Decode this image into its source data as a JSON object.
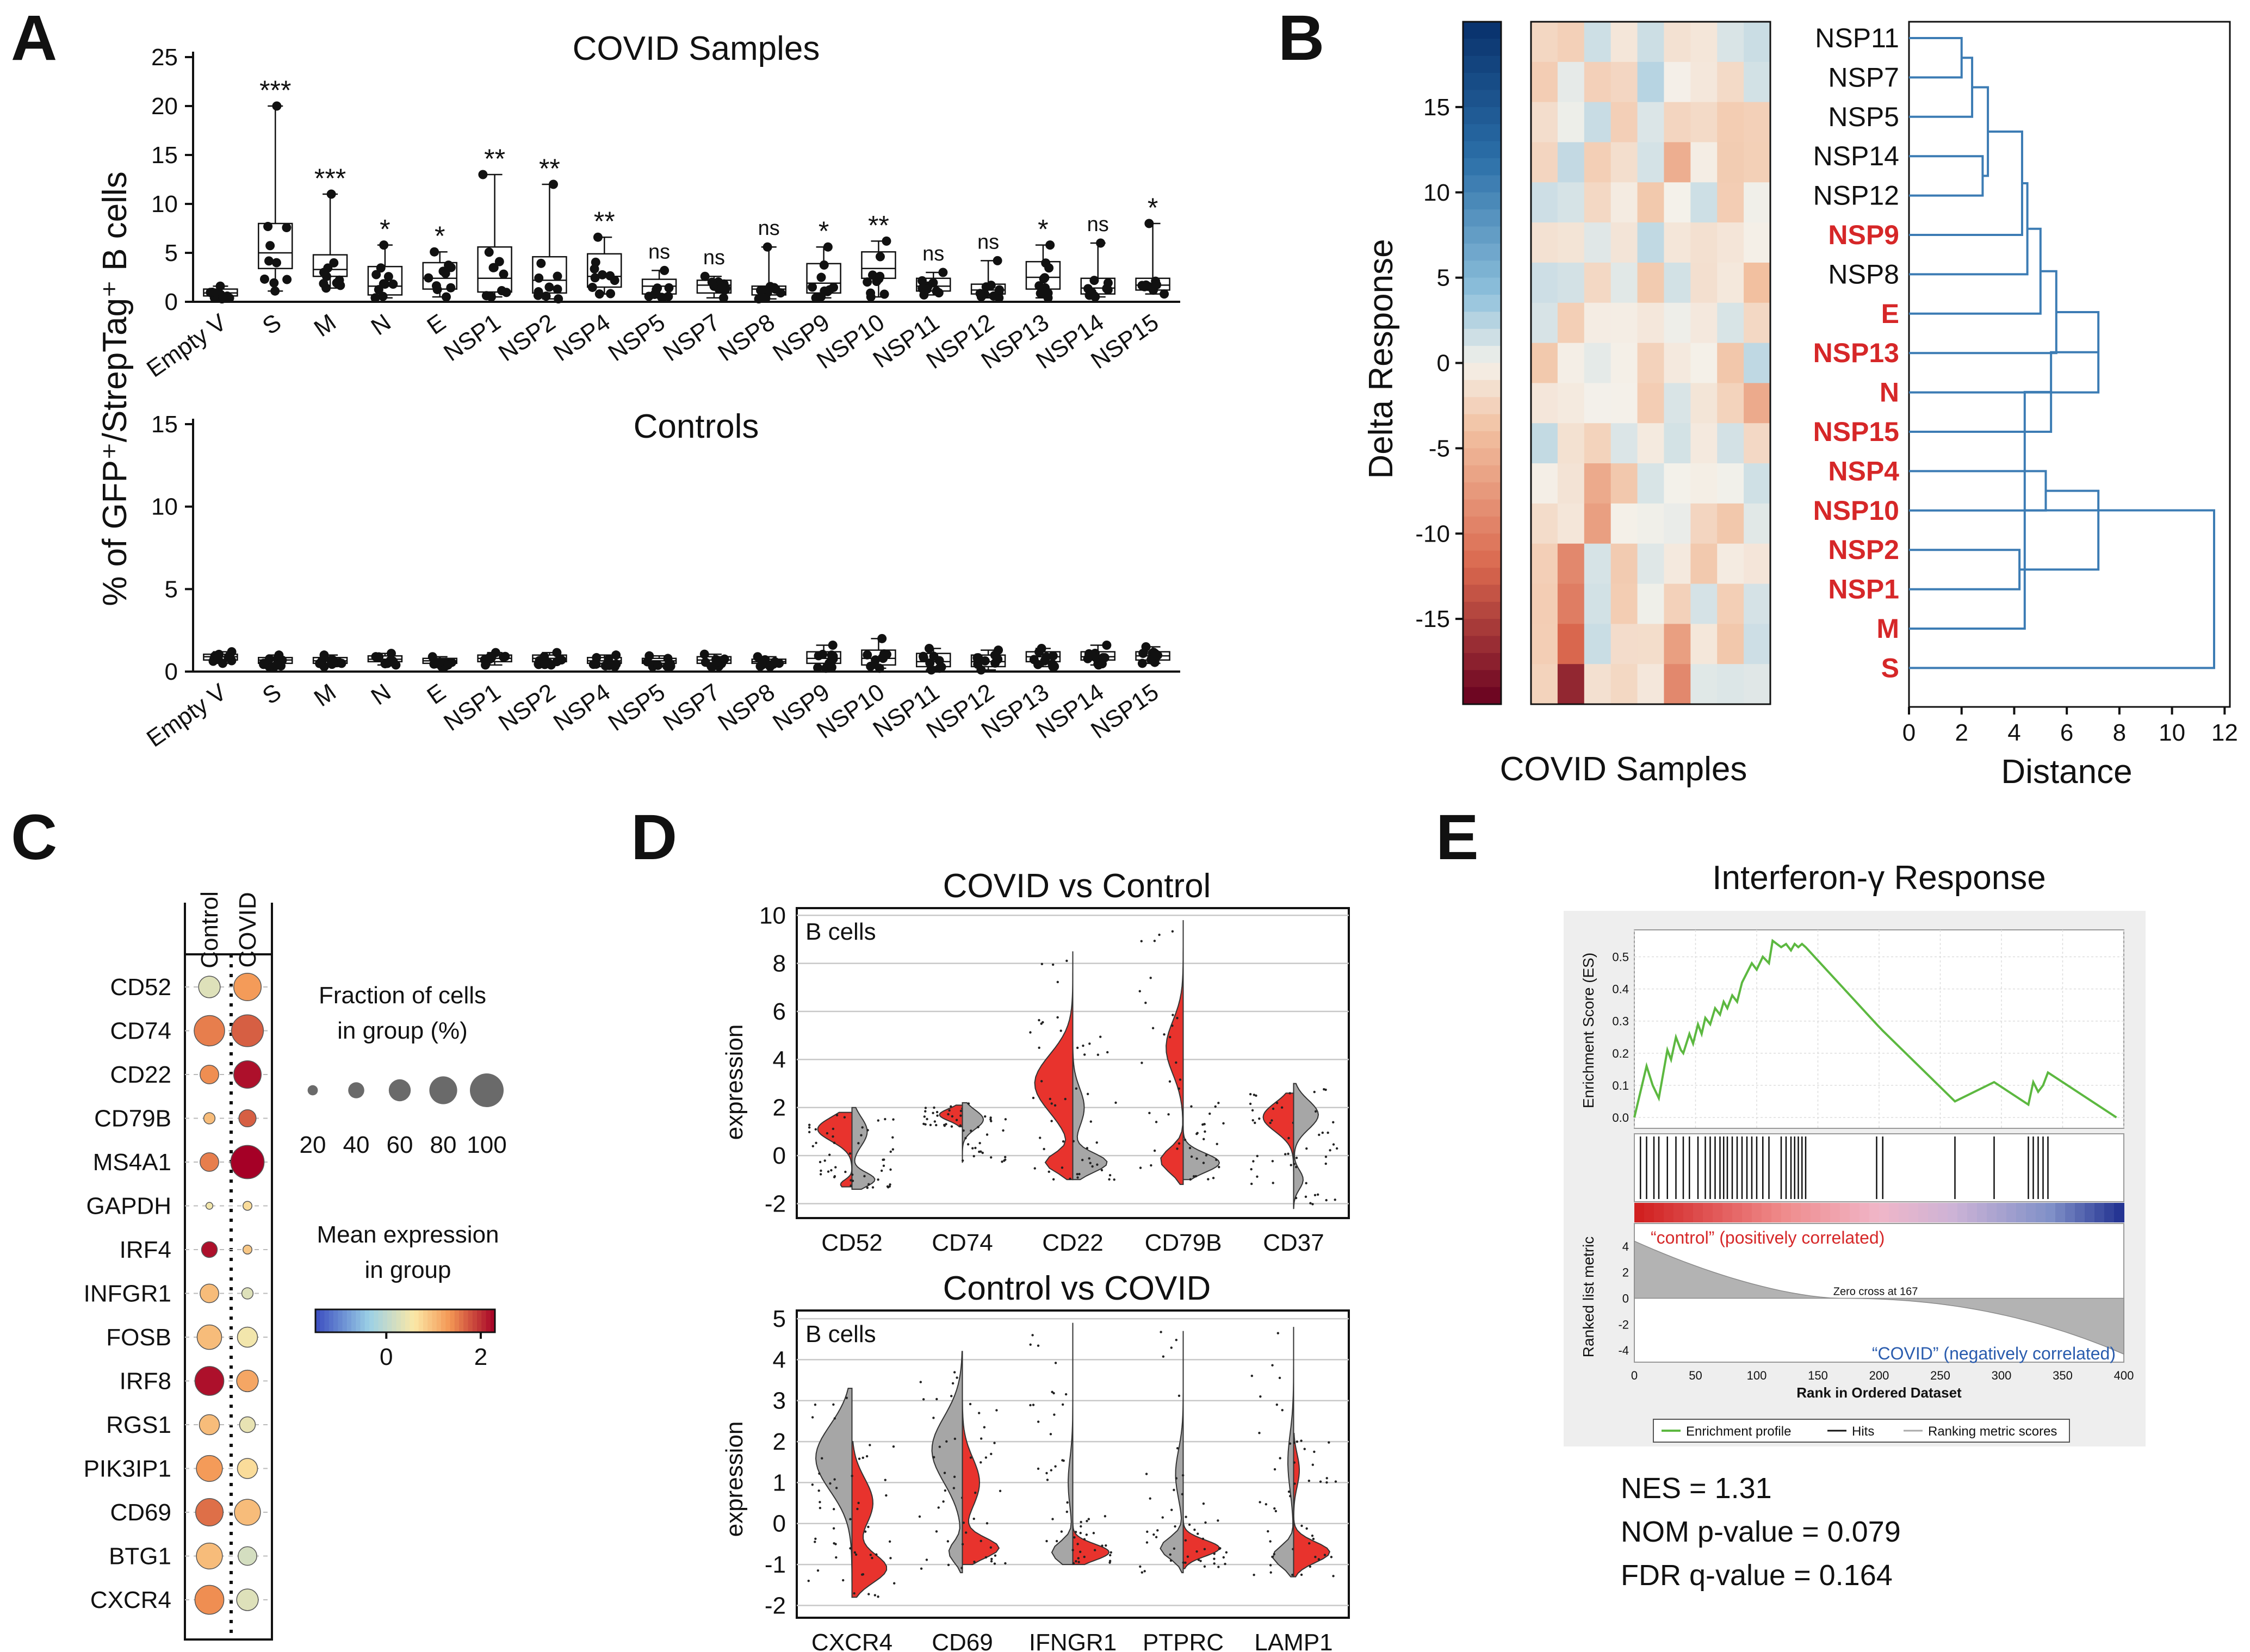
{
  "panels": {
    "A": {
      "label": "A",
      "title_top": "COVID Samples",
      "title_bottom": "Controls",
      "ylabel": "% of GFP⁺/StrepTag⁺ B cells"
    },
    "B": {
      "label": "B",
      "colorbar_label": "Delta Response",
      "heatmap_xlabel": "COVID Samples",
      "dendro_xlabel": "Distance"
    },
    "C": {
      "label": "C",
      "col_control": "Control",
      "col_covid": "COVID",
      "size_legend_title_1": "Fraction of cells",
      "size_legend_title_2": "in group (%)",
      "color_legend_title_1": "Mean expression",
      "color_legend_title_2": "in group"
    },
    "D": {
      "label": "D",
      "title_top": "COVID vs Control",
      "title_bottom": "Control vs COVID",
      "subset_label": "B cells",
      "ylabel": "expression"
    },
    "E": {
      "label": "E",
      "title": "Interferon-γ Response",
      "ylabel_top": "Enrichment Score (ES)",
      "ylabel_bottom": "Ranked list metric",
      "xlabel": "Rank in Ordered Dataset",
      "pos_label": "“control” (positively correlated)",
      "neg_label": "“COVID” (negatively correlated)",
      "zero_cross": "Zero cross at 167",
      "legend_1": "Enrichment profile",
      "legend_2": "Hits",
      "legend_3": "Ranking metric scores",
      "stat_1": "NES = 1.31",
      "stat_2": "NOM p-value = 0.079",
      "stat_3": "FDR q-value = 0.164"
    }
  },
  "colors": {
    "red": "#d62728",
    "violin_red": "#e8332d",
    "violin_grey": "#a6a6a6",
    "dendro": "#3c7cb4",
    "gsea_green": "#5cb840"
  },
  "chart_data": [
    {
      "id": "A_top",
      "type": "box",
      "title": "COVID Samples",
      "ylabel": "% of GFP⁺/StrepTag⁺ B cells",
      "categories": [
        "Empty V",
        "S",
        "M",
        "N",
        "E",
        "NSP1",
        "NSP2",
        "NSP4",
        "NSP5",
        "NSP7",
        "NSP8",
        "NSP9",
        "NSP10",
        "NSP11",
        "NSP12",
        "NSP13",
        "NSP14",
        "NSP15"
      ],
      "ylim": [
        0,
        25
      ],
      "yticks": [
        0,
        5,
        10,
        15,
        20,
        25
      ],
      "boxes": [
        [
          0.3,
          0.6,
          0.9,
          1.3,
          1.6
        ],
        [
          1.1,
          3.4,
          5.0,
          8.0,
          20
        ],
        [
          1.4,
          2.6,
          3.3,
          4.8,
          11
        ],
        [
          0.4,
          0.7,
          1.6,
          3.6,
          5.8
        ],
        [
          0.5,
          1.3,
          2.4,
          4.0,
          5.1
        ],
        [
          0.5,
          1.0,
          2.4,
          5.6,
          13
        ],
        [
          0.3,
          0.9,
          2.2,
          4.6,
          12
        ],
        [
          0.8,
          1.5,
          2.6,
          4.9,
          6.6
        ],
        [
          0.4,
          0.8,
          1.6,
          2.3,
          3.2
        ],
        [
          0.4,
          0.9,
          1.7,
          2.2,
          2.6
        ],
        [
          0.3,
          0.7,
          1.3,
          1.6,
          5.6
        ],
        [
          0.4,
          0.9,
          1.9,
          3.9,
          5.6
        ],
        [
          0.5,
          2.4,
          3.4,
          5.1,
          6.2
        ],
        [
          0.7,
          1.1,
          1.6,
          2.4,
          3.0
        ],
        [
          0.4,
          0.8,
          1.2,
          1.8,
          4.2
        ],
        [
          0.4,
          1.3,
          2.5,
          4.1,
          5.8
        ],
        [
          0.5,
          0.8,
          1.4,
          2.4,
          6.0
        ],
        [
          0.8,
          1.2,
          1.7,
          2.4,
          8.0
        ]
      ],
      "significance": [
        "",
        "***",
        "***",
        "*",
        "*",
        "**",
        "**",
        "**",
        "ns",
        "ns",
        "ns",
        "*",
        "**",
        "ns",
        "ns",
        "*",
        "ns",
        "*"
      ]
    },
    {
      "id": "A_bottom",
      "type": "box",
      "title": "Controls",
      "categories": [
        "Empty V",
        "S",
        "M",
        "N",
        "E",
        "NSP1",
        "NSP2",
        "NSP4",
        "NSP5",
        "NSP7",
        "NSP8",
        "NSP9",
        "NSP10",
        "NSP11",
        "NSP12",
        "NSP13",
        "NSP14",
        "NSP15"
      ],
      "ylim": [
        0,
        15
      ],
      "yticks": [
        0,
        5,
        10,
        15
      ],
      "boxes": [
        [
          0.5,
          0.7,
          0.9,
          1.05,
          1.2
        ],
        [
          0.3,
          0.5,
          0.7,
          0.85,
          1.0
        ],
        [
          0.3,
          0.5,
          0.65,
          0.85,
          1.0
        ],
        [
          0.4,
          0.6,
          0.75,
          0.95,
          1.1
        ],
        [
          0.3,
          0.5,
          0.65,
          0.8,
          0.9
        ],
        [
          0.4,
          0.6,
          0.8,
          1.0,
          1.15
        ],
        [
          0.4,
          0.6,
          0.8,
          1.0,
          1.15
        ],
        [
          0.3,
          0.5,
          0.65,
          0.85,
          1.0
        ],
        [
          0.3,
          0.5,
          0.65,
          0.8,
          0.95
        ],
        [
          0.3,
          0.5,
          0.7,
          0.9,
          1.05
        ],
        [
          0.3,
          0.5,
          0.6,
          0.75,
          0.9
        ],
        [
          0.2,
          0.5,
          0.8,
          1.2,
          1.6
        ],
        [
          0.2,
          0.4,
          0.8,
          1.3,
          2.0
        ],
        [
          0.1,
          0.3,
          0.6,
          1.1,
          1.4
        ],
        [
          0.1,
          0.3,
          0.6,
          1.0,
          1.3
        ],
        [
          0.3,
          0.6,
          0.9,
          1.2,
          1.4
        ],
        [
          0.4,
          0.7,
          0.9,
          1.2,
          1.6
        ],
        [
          0.5,
          0.7,
          0.95,
          1.2,
          1.5
        ]
      ]
    },
    {
      "id": "B_dendrogram",
      "type": "dendrogram",
      "xlabel": "Distance",
      "leaves": [
        "NSP11",
        "NSP7",
        "NSP5",
        "NSP14",
        "NSP12",
        "NSP9",
        "NSP8",
        "E",
        "NSP13",
        "N",
        "NSP15",
        "NSP4",
        "NSP10",
        "NSP2",
        "NSP1",
        "M",
        "S"
      ],
      "highlighted": [
        "NSP9",
        "E",
        "NSP13",
        "N",
        "NSP15",
        "NSP4",
        "NSP10",
        "NSP2",
        "NSP1",
        "M",
        "S"
      ],
      "xticks": [
        0,
        2,
        4,
        6,
        8,
        10,
        12
      ],
      "merges": [
        [
          0,
          1,
          2.0
        ],
        [
          2,
          17,
          2.4
        ],
        [
          3,
          4,
          2.8
        ],
        [
          18,
          19,
          3.0
        ],
        [
          20,
          5,
          4.3
        ],
        [
          21,
          6,
          4.5
        ],
        [
          22,
          7,
          5.0
        ],
        [
          23,
          8,
          5.6
        ],
        [
          24,
          9,
          7.2
        ],
        [
          11,
          12,
          5.2
        ],
        [
          25,
          10,
          5.4
        ],
        [
          13,
          14,
          4.2
        ],
        [
          27,
          15,
          4.4
        ],
        [
          26,
          28,
          7.2
        ],
        [
          29,
          16,
          11.6
        ]
      ],
      "colorbar_ticks": [
        15,
        10,
        5,
        0,
        -5,
        -10,
        -15
      ],
      "colorbar_range": [
        -20,
        20
      ]
    },
    {
      "id": "C_dotplot",
      "type": "dotplot",
      "genes": [
        "CD52",
        "CD74",
        "CD22",
        "CD79B",
        "MS4A1",
        "GAPDH",
        "IRF4",
        "INFGR1",
        "FOSB",
        "IRF8",
        "RGS1",
        "PIK3IP1",
        "CD69",
        "BTG1",
        "CXCR4"
      ],
      "groups": [
        "Control",
        "COVID"
      ],
      "fraction_pct": [
        [
          55,
          75
        ],
        [
          85,
          90
        ],
        [
          45,
          75
        ],
        [
          20,
          40
        ],
        [
          45,
          95
        ],
        [
          5,
          12
        ],
        [
          35,
          12
        ],
        [
          45,
          20
        ],
        [
          65,
          50
        ],
        [
          80,
          55
        ],
        [
          50,
          35
        ],
        [
          70,
          50
        ],
        [
          75,
          70
        ],
        [
          70,
          45
        ],
        [
          80,
          55
        ]
      ],
      "mean_expr": [
        [
          0.3,
          1.3
        ],
        [
          1.5,
          1.7
        ],
        [
          1.4,
          2.2
        ],
        [
          1.0,
          1.7
        ],
        [
          1.5,
          2.3
        ],
        [
          0.5,
          0.7
        ],
        [
          2.2,
          0.9
        ],
        [
          1.0,
          0.3
        ],
        [
          1.0,
          0.5
        ],
        [
          2.2,
          1.2
        ],
        [
          1.0,
          0.4
        ],
        [
          1.3,
          0.7
        ],
        [
          1.6,
          1.0
        ],
        [
          1.0,
          0.2
        ],
        [
          1.4,
          0.3
        ]
      ],
      "size_legend": [
        20,
        40,
        60,
        80,
        100
      ],
      "color_ticks": [
        0,
        2
      ],
      "color_range": [
        -1.5,
        2.3
      ]
    },
    {
      "id": "D_top",
      "type": "split_violin",
      "title": "COVID vs Control",
      "ylabel": "expression",
      "categories": [
        "CD52",
        "CD74",
        "CD22",
        "CD79B",
        "CD37"
      ],
      "yticks": [
        -2,
        0,
        2,
        4,
        6,
        8,
        10
      ],
      "ylim": [
        -2.6,
        10.3
      ],
      "series": [
        {
          "name": "COVID",
          "color": "#e8332d"
        },
        {
          "name": "Control",
          "color": "#a6a6a6"
        }
      ]
    },
    {
      "id": "D_bottom",
      "type": "split_violin",
      "title": "Control vs COVID",
      "ylabel": "expression",
      "categories": [
        "CXCR4",
        "CD69",
        "IFNGR1",
        "PTPRC",
        "LAMP1"
      ],
      "yticks": [
        -2,
        -1,
        0,
        1,
        2,
        3,
        4,
        5
      ],
      "ylim": [
        -2.3,
        5.2
      ],
      "series": [
        {
          "name": "Control",
          "color": "#a6a6a6"
        },
        {
          "name": "COVID",
          "color": "#e8332d"
        }
      ]
    },
    {
      "id": "E_gsea",
      "type": "line",
      "title": "Interferon-γ Response",
      "xlabel": "Rank in Ordered Dataset",
      "ylabel": "Enrichment Score (ES)",
      "xticks": [
        0,
        50,
        100,
        150,
        200,
        250,
        300,
        350,
        400
      ],
      "yticks": [
        0.0,
        0.1,
        0.2,
        0.3,
        0.4,
        0.5
      ],
      "metric_ticks": [
        4,
        2,
        0,
        -2,
        -4
      ],
      "hits": [
        5,
        10,
        16,
        20,
        27,
        34,
        40,
        45,
        52,
        58,
        62,
        66,
        70,
        73,
        76,
        80,
        84,
        88,
        92,
        96,
        100,
        105,
        110,
        120,
        124,
        128,
        131,
        134,
        137,
        140,
        198,
        203,
        262,
        294,
        322,
        326,
        330,
        334,
        338
      ],
      "es_x": [
        0,
        5,
        10,
        15,
        20,
        27,
        30,
        34,
        38,
        40,
        45,
        48,
        52,
        55,
        58,
        62,
        66,
        70,
        73,
        76,
        80,
        84,
        88,
        92,
        96,
        100,
        105,
        110,
        113,
        120,
        124,
        128,
        131,
        134,
        137,
        140,
        198,
        203,
        262,
        294,
        322,
        326,
        330,
        334,
        338,
        394
      ],
      "es_y": [
        0.0,
        0.08,
        0.16,
        0.1,
        0.06,
        0.21,
        0.18,
        0.25,
        0.21,
        0.2,
        0.26,
        0.23,
        0.29,
        0.26,
        0.31,
        0.29,
        0.34,
        0.32,
        0.36,
        0.34,
        0.38,
        0.36,
        0.42,
        0.45,
        0.48,
        0.46,
        0.5,
        0.48,
        0.55,
        0.53,
        0.54,
        0.52,
        0.54,
        0.53,
        0.54,
        0.53,
        0.29,
        0.27,
        0.05,
        0.11,
        0.04,
        0.11,
        0.08,
        0.1,
        0.14,
        0.0
      ]
    }
  ]
}
